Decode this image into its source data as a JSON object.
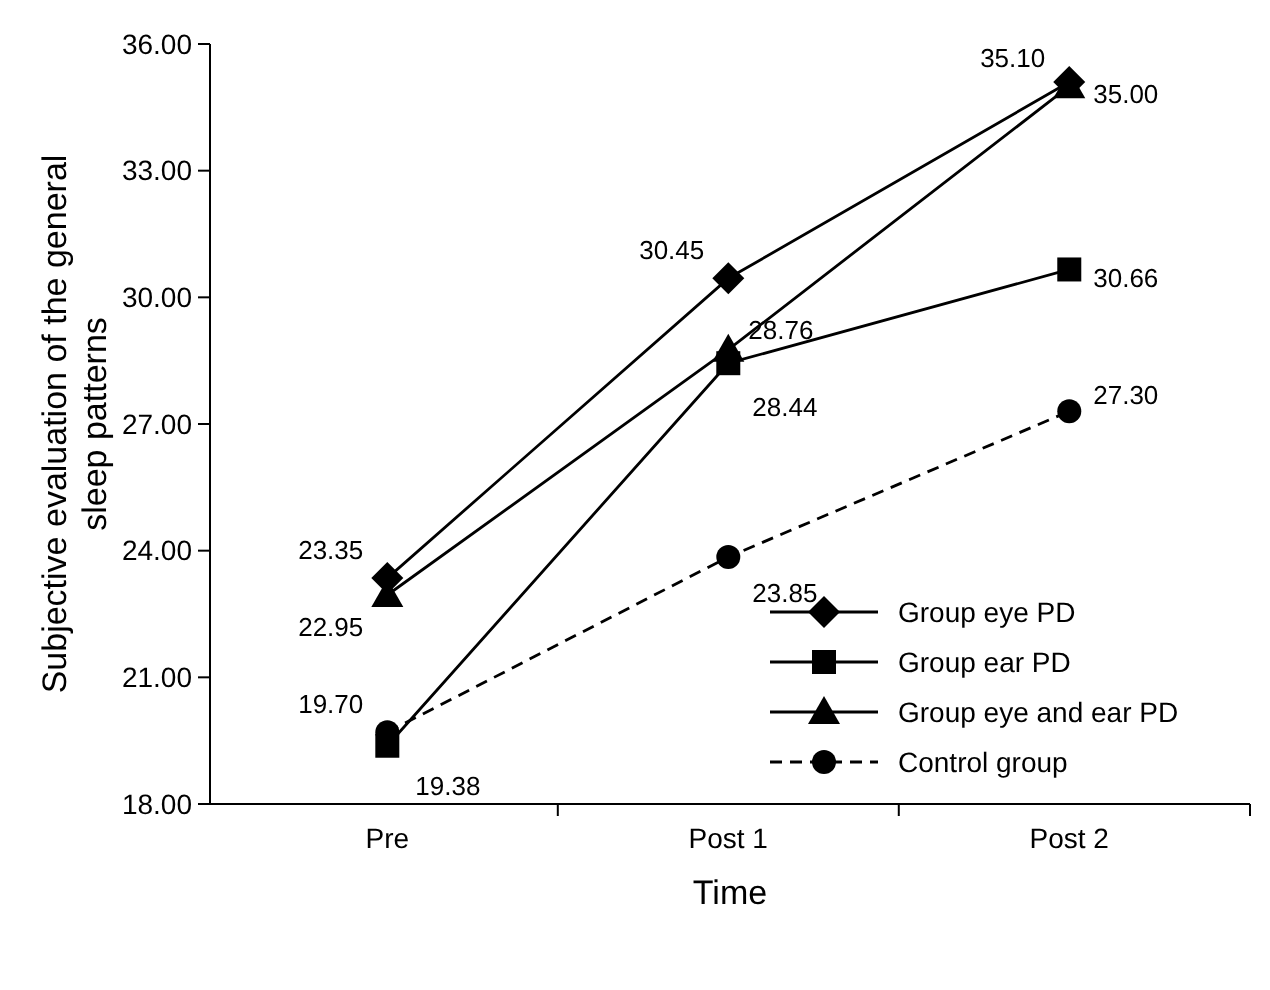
{
  "chart_data": {
    "type": "line",
    "xlabel": "Time",
    "ylabel": "Subjective evaluation of the general sleep patterns",
    "categories": [
      "Pre",
      "Post 1",
      "Post 2"
    ],
    "ylim": [
      18,
      36
    ],
    "yticks": [
      {
        "value": 18,
        "label": "18.00"
      },
      {
        "value": 21,
        "label": "21.00"
      },
      {
        "value": 24,
        "label": "24.00"
      },
      {
        "value": 27,
        "label": "27.00"
      },
      {
        "value": 30,
        "label": "30.00"
      },
      {
        "value": 33,
        "label": "33.00"
      },
      {
        "value": 36,
        "label": "36.00"
      }
    ],
    "legend": "bottom right",
    "grid": false,
    "series": [
      {
        "name": "Group eye PD",
        "color": "#000000",
        "marker": "diamond",
        "line_style": "solid",
        "values": [
          23.35,
          30.45,
          35.1
        ],
        "value_labels": [
          "23.35",
          "30.45",
          "35.10"
        ]
      },
      {
        "name": "Group ear PD",
        "color": "#000000",
        "marker": "square",
        "line_style": "solid",
        "values": [
          19.38,
          28.44,
          30.66
        ],
        "value_labels": [
          "19.38",
          "28.44",
          "30.66"
        ]
      },
      {
        "name": "Group eye and ear PD",
        "color": "#000000",
        "marker": "triangle",
        "line_style": "solid",
        "values": [
          22.95,
          28.76,
          35.0
        ],
        "value_labels": [
          "22.95",
          "28.76",
          "35.00"
        ]
      },
      {
        "name": "Control group",
        "color": "#000000",
        "marker": "circle",
        "line_style": "dashed",
        "values": [
          19.7,
          23.85,
          27.3
        ],
        "value_labels": [
          "19.70",
          "23.85",
          "27.30"
        ]
      }
    ]
  }
}
